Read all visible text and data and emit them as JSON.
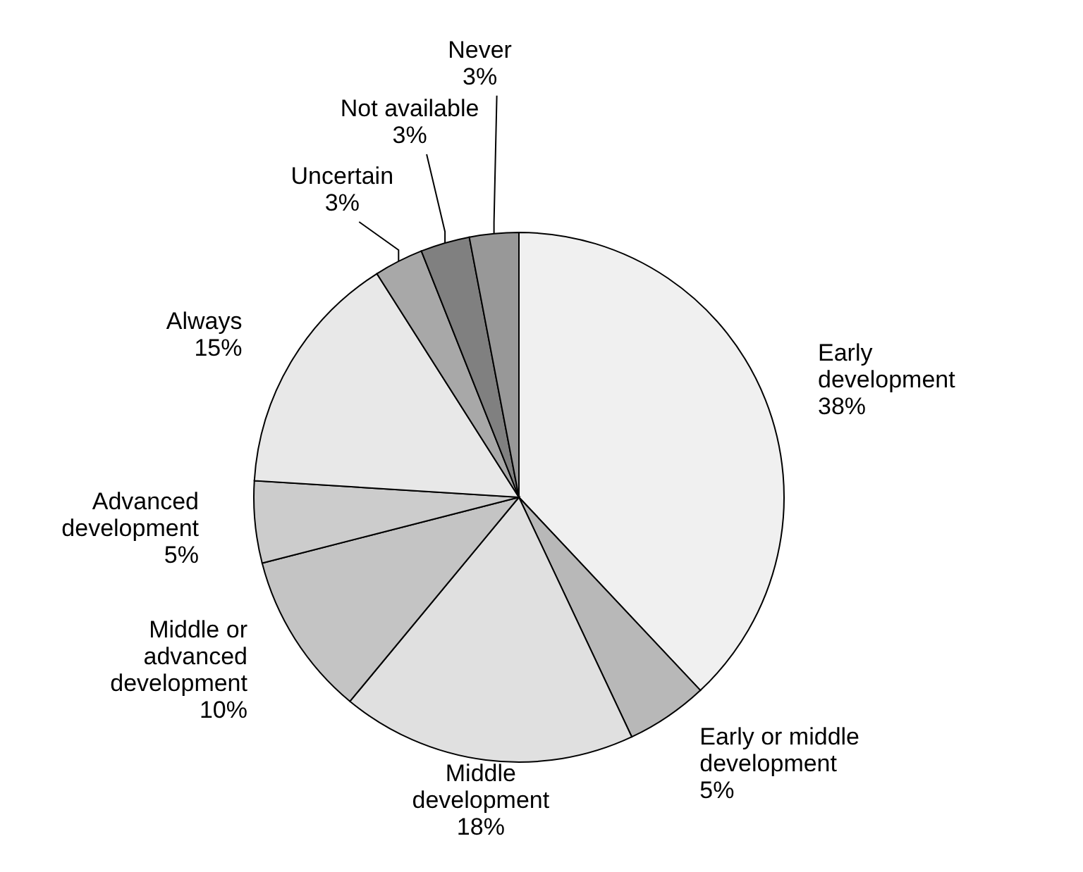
{
  "chart_data": {
    "type": "pie",
    "categories": [
      "Early development",
      "Early or middle development",
      "Middle development",
      "Middle or advanced development",
      "Advanced development",
      "Always",
      "Uncertain",
      "Not available",
      "Never"
    ],
    "values": [
      38,
      5,
      18,
      10,
      5,
      15,
      3,
      3,
      3
    ],
    "value_labels": [
      "38%",
      "5%",
      "18%",
      "10%",
      "5%",
      "15%",
      "3%",
      "3%",
      "3%"
    ],
    "colors": [
      "#f0f0f0",
      "#b8b8b8",
      "#e0e0e0",
      "#c4c4c4",
      "#cccccc",
      "#e8e8e8",
      "#a8a8a8",
      "#808080",
      "#989898"
    ],
    "legend": false
  }
}
